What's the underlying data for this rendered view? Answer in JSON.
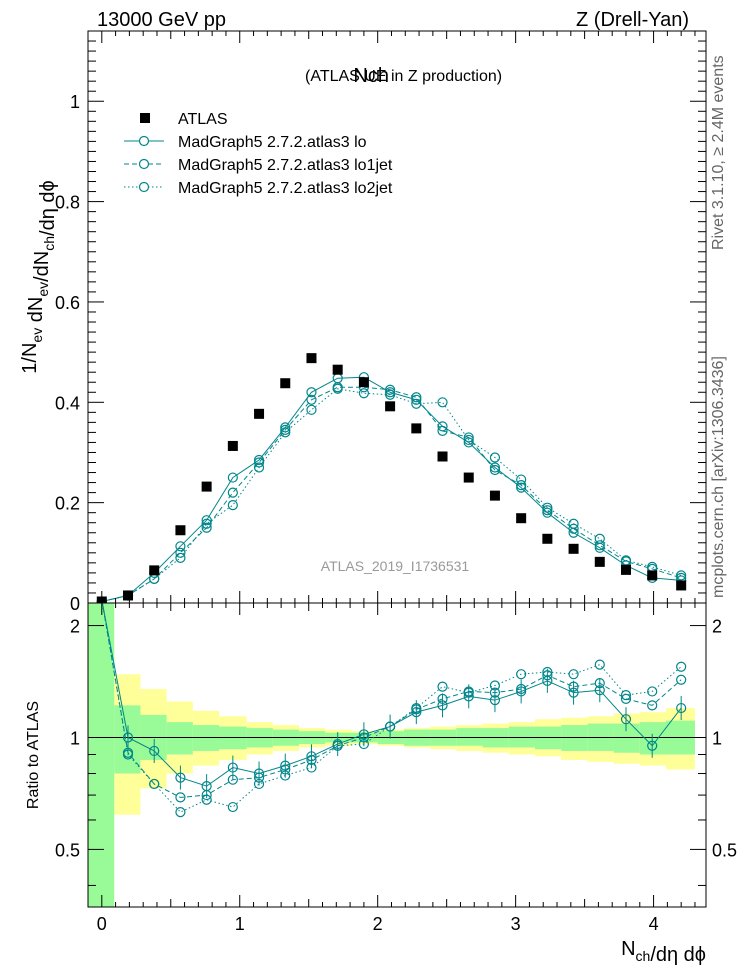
{
  "header": {
    "left": "13000 GeV pp",
    "right": "Z (Drell-Yan)",
    "title_main": "Nch",
    "title_sub": "(ATLAS UE in Z production)",
    "side_top": "Rivet 3.1.10, ≥ 2.4M events",
    "side_bottom": "mcplots.cern.ch [arXiv:1306.3436]",
    "analysis": "ATLAS_2019_I1736531"
  },
  "colors": {
    "mc": "#00868b",
    "data": "#000000",
    "band_green": "#98fb98",
    "band_yellow": "#ffff99"
  },
  "chart_data": [
    {
      "type": "scatter",
      "panel": "main",
      "ylabel": "1/N_ev dN_ev/dN_ch/dη dϕ",
      "xlim": [
        -0.1,
        4.38
      ],
      "ylim": [
        0,
        1.14
      ],
      "yticks": [
        0,
        0.2,
        0.4,
        0.6,
        0.8,
        1
      ],
      "ytick_labels": [
        "0",
        "0.2",
        "0.4",
        "0.6",
        "0.8",
        "1"
      ],
      "legend_position": "top-left",
      "x": [
        0.0,
        0.19,
        0.38,
        0.57,
        0.76,
        0.95,
        1.14,
        1.33,
        1.52,
        1.71,
        1.9,
        2.09,
        2.28,
        2.47,
        2.66,
        2.85,
        3.04,
        3.23,
        3.42,
        3.61,
        3.8,
        3.99,
        4.2
      ],
      "series": [
        {
          "name": "ATLAS",
          "style": "square",
          "values": [
            0.003,
            0.015,
            0.065,
            0.145,
            0.232,
            0.313,
            0.377,
            0.438,
            0.488,
            0.465,
            0.44,
            0.392,
            0.348,
            0.292,
            0.25,
            0.214,
            0.169,
            0.128,
            0.108,
            0.082,
            0.066,
            0.055,
            0.035
          ]
        },
        {
          "name": "MadGraph5 2.7.2.atlas3 lo",
          "style": "solid",
          "values": [
            0.003,
            0.015,
            0.06,
            0.113,
            0.165,
            0.25,
            0.285,
            0.35,
            0.42,
            0.448,
            0.45,
            0.42,
            0.405,
            0.352,
            0.32,
            0.27,
            0.23,
            0.18,
            0.14,
            0.11,
            0.075,
            0.05,
            0.045
          ]
        },
        {
          "name": "MadGraph5 2.7.2.atlas3 lo1jet",
          "style": "dashed",
          "values": [
            0.003,
            0.015,
            0.048,
            0.1,
            0.15,
            0.22,
            0.28,
            0.345,
            0.405,
            0.43,
            0.43,
            0.425,
            0.41,
            0.343,
            0.33,
            0.265,
            0.235,
            0.185,
            0.148,
            0.115,
            0.083,
            0.068,
            0.05
          ]
        },
        {
          "name": "MadGraph5 2.7.2.atlas3 lo2jet",
          "style": "dotted",
          "values": [
            0.003,
            0.015,
            0.048,
            0.09,
            0.158,
            0.195,
            0.27,
            0.34,
            0.385,
            0.427,
            0.418,
            0.415,
            0.397,
            0.4,
            0.325,
            0.29,
            0.246,
            0.19,
            0.158,
            0.128,
            0.085,
            0.072,
            0.055
          ]
        }
      ]
    },
    {
      "type": "scatter",
      "panel": "ratio",
      "xlabel": "N_ch/dη dϕ",
      "ylabel": "Ratio to ATLAS",
      "xlim": [
        -0.1,
        4.38
      ],
      "ylim": [
        0.35,
        2.3
      ],
      "xticks": [
        0,
        1,
        2,
        3,
        4
      ],
      "xtick_labels": [
        "0",
        "1",
        "2",
        "3",
        "4"
      ],
      "yticks": [
        0.5,
        1,
        2
      ],
      "ytick_labels": [
        "0.5",
        "1",
        "2"
      ],
      "x": [
        0.19,
        0.38,
        0.57,
        0.76,
        0.95,
        1.14,
        1.33,
        1.52,
        1.71,
        1.9,
        2.09,
        2.28,
        2.47,
        2.66,
        2.85,
        3.04,
        3.23,
        3.42,
        3.61,
        3.8,
        3.99,
        4.2
      ],
      "bands": {
        "edges": [
          -0.1,
          0.09,
          0.28,
          0.47,
          0.66,
          0.85,
          1.05,
          1.24,
          1.43,
          1.62,
          1.81,
          2.0,
          2.19,
          2.38,
          2.57,
          2.76,
          2.95,
          3.14,
          3.33,
          3.52,
          3.71,
          3.9,
          4.09,
          4.3
        ],
        "green": [
          [
            0.35,
            2.3
          ],
          [
            0.8,
            1.22
          ],
          [
            0.87,
            1.15
          ],
          [
            0.9,
            1.1
          ],
          [
            0.92,
            1.08
          ],
          [
            0.93,
            1.07
          ],
          [
            0.94,
            1.06
          ],
          [
            0.95,
            1.05
          ],
          [
            0.96,
            1.04
          ],
          [
            0.97,
            1.03
          ],
          [
            0.97,
            1.03
          ],
          [
            0.96,
            1.04
          ],
          [
            0.95,
            1.05
          ],
          [
            0.95,
            1.05
          ],
          [
            0.95,
            1.06
          ],
          [
            0.94,
            1.06
          ],
          [
            0.94,
            1.07
          ],
          [
            0.93,
            1.07
          ],
          [
            0.92,
            1.08
          ],
          [
            0.92,
            1.09
          ],
          [
            0.91,
            1.09
          ],
          [
            0.9,
            1.1
          ],
          [
            0.9,
            1.11
          ]
        ],
        "yellow": [
          [
            0.35,
            2.3
          ],
          [
            0.62,
            1.48
          ],
          [
            0.73,
            1.35
          ],
          [
            0.8,
            1.25
          ],
          [
            0.84,
            1.18
          ],
          [
            0.87,
            1.14
          ],
          [
            0.9,
            1.1
          ],
          [
            0.92,
            1.08
          ],
          [
            0.94,
            1.06
          ],
          [
            0.95,
            1.05
          ],
          [
            0.96,
            1.04
          ],
          [
            0.95,
            1.05
          ],
          [
            0.94,
            1.06
          ],
          [
            0.93,
            1.07
          ],
          [
            0.92,
            1.08
          ],
          [
            0.91,
            1.09
          ],
          [
            0.9,
            1.1
          ],
          [
            0.89,
            1.12
          ],
          [
            0.87,
            1.13
          ],
          [
            0.86,
            1.14
          ],
          [
            0.85,
            1.16
          ],
          [
            0.84,
            1.17
          ],
          [
            0.82,
            1.2
          ]
        ]
      },
      "series": [
        {
          "name": "MadGraph5 2.7.2.atlas3 lo",
          "style": "solid",
          "values": [
            1.0,
            0.92,
            0.78,
            0.74,
            0.83,
            0.8,
            0.84,
            0.89,
            0.96,
            1.02,
            1.07,
            1.17,
            1.22,
            1.29,
            1.26,
            1.33,
            1.42,
            1.32,
            1.34,
            1.12,
            0.95,
            1.2
          ]
        },
        {
          "name": "MadGraph5 2.7.2.atlas3 lo1jet",
          "style": "dashed",
          "values": [
            0.91,
            0.75,
            0.69,
            0.7,
            0.77,
            0.78,
            0.82,
            0.87,
            0.95,
            1.0,
            1.07,
            1.19,
            1.27,
            1.33,
            1.32,
            1.35,
            1.47,
            1.37,
            1.4,
            1.27,
            1.22,
            1.43
          ]
        },
        {
          "name": "MadGraph5 2.7.2.atlas3 lo2jet",
          "style": "dotted",
          "values": [
            0.9,
            0.75,
            0.63,
            0.68,
            0.65,
            0.75,
            0.79,
            0.83,
            0.95,
            0.96,
            1.07,
            1.2,
            1.37,
            1.32,
            1.38,
            1.48,
            1.5,
            1.48,
            1.57,
            1.3,
            1.33,
            1.55
          ]
        }
      ]
    }
  ]
}
